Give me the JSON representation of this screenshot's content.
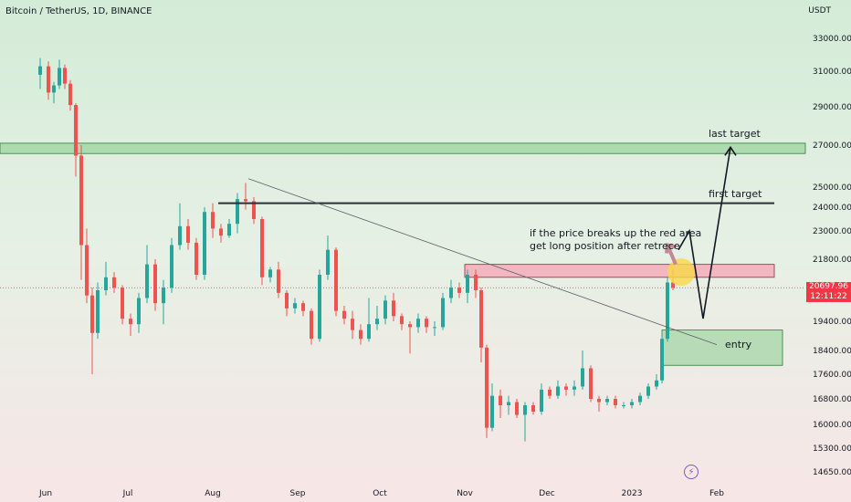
{
  "header": {
    "symbol_line": "Bitcoin / TetherUS, 1D, BINANCE",
    "currency": "USDT"
  },
  "current_price": {
    "value": "20697.96",
    "countdown": "12:11:22"
  },
  "colors": {
    "up": "#26a69a",
    "down": "#ef5350",
    "red_zone": "#f4a9b8",
    "green_zone": "#a5d6a7",
    "price_tag": "#f23645",
    "marker": "#f9d849"
  },
  "annotations": {
    "last_target": "last target",
    "first_target": "first target",
    "note_line1": "if the price breaks up the red area",
    "note_line2": "get long position after retrece",
    "entry": "entry"
  },
  "chart_data": {
    "type": "candlestick",
    "title": "Bitcoin / TetherUS, 1D, BINANCE",
    "y_ticks": [
      "33000.00",
      "31000.00",
      "29000.00",
      "27000.00",
      "25000.00",
      "24000.00",
      "23000.00",
      "21800.00",
      "20697.96",
      "19400.00",
      "18400.00",
      "17600.00",
      "16800.00",
      "16000.00",
      "15300.00",
      "14650.00"
    ],
    "x_ticks": [
      "Jun",
      "Jul",
      "Aug",
      "Sep",
      "Oct",
      "Nov",
      "Dec",
      "2023",
      "Feb"
    ],
    "ylim": [
      14400,
      34400
    ],
    "series": [
      {
        "x": "May-30",
        "o": 30800,
        "h": 31800,
        "l": 30000,
        "c": 31300
      },
      {
        "x": "Jun-02",
        "o": 31300,
        "h": 31600,
        "l": 29400,
        "c": 29800
      },
      {
        "x": "Jun-04",
        "o": 29800,
        "h": 30400,
        "l": 29200,
        "c": 30200
      },
      {
        "x": "Jun-06",
        "o": 30200,
        "h": 31700,
        "l": 30000,
        "c": 31200
      },
      {
        "x": "Jun-08",
        "o": 31200,
        "h": 31400,
        "l": 30000,
        "c": 30300
      },
      {
        "x": "Jun-10",
        "o": 30300,
        "h": 30500,
        "l": 28800,
        "c": 29100
      },
      {
        "x": "Jun-12",
        "o": 29100,
        "h": 29200,
        "l": 25500,
        "c": 26500
      },
      {
        "x": "Jun-14",
        "o": 26500,
        "h": 27000,
        "l": 21000,
        "c": 22400
      },
      {
        "x": "Jun-16",
        "o": 22400,
        "h": 23100,
        "l": 20100,
        "c": 20400
      },
      {
        "x": "Jun-18",
        "o": 20400,
        "h": 20700,
        "l": 17600,
        "c": 19000
      },
      {
        "x": "Jun-20",
        "o": 19000,
        "h": 20900,
        "l": 18800,
        "c": 20600
      },
      {
        "x": "Jun-23",
        "o": 20600,
        "h": 21700,
        "l": 20400,
        "c": 21100
      },
      {
        "x": "Jun-26",
        "o": 21100,
        "h": 21300,
        "l": 20500,
        "c": 20700
      },
      {
        "x": "Jun-29",
        "o": 20700,
        "h": 20800,
        "l": 19300,
        "c": 19500
      },
      {
        "x": "Jul-02",
        "o": 19500,
        "h": 19700,
        "l": 18900,
        "c": 19300
      },
      {
        "x": "Jul-05",
        "o": 19300,
        "h": 20500,
        "l": 19000,
        "c": 20300
      },
      {
        "x": "Jul-08",
        "o": 20300,
        "h": 22400,
        "l": 20100,
        "c": 21600
      },
      {
        "x": "Jul-11",
        "o": 21600,
        "h": 21800,
        "l": 19800,
        "c": 20100
      },
      {
        "x": "Jul-14",
        "o": 20100,
        "h": 21000,
        "l": 19300,
        "c": 20700
      },
      {
        "x": "Jul-17",
        "o": 20700,
        "h": 22700,
        "l": 20500,
        "c": 22400
      },
      {
        "x": "Jul-20",
        "o": 22400,
        "h": 24200,
        "l": 22200,
        "c": 23200
      },
      {
        "x": "Jul-23",
        "o": 23200,
        "h": 23500,
        "l": 22200,
        "c": 22500
      },
      {
        "x": "Jul-26",
        "o": 22500,
        "h": 22700,
        "l": 21000,
        "c": 21200
      },
      {
        "x": "Jul-29",
        "o": 21200,
        "h": 24000,
        "l": 21000,
        "c": 23800
      },
      {
        "x": "Aug-01",
        "o": 23800,
        "h": 24200,
        "l": 22700,
        "c": 23100
      },
      {
        "x": "Aug-04",
        "o": 23100,
        "h": 23300,
        "l": 22500,
        "c": 22800
      },
      {
        "x": "Aug-07",
        "o": 22800,
        "h": 23500,
        "l": 22700,
        "c": 23300
      },
      {
        "x": "Aug-10",
        "o": 23300,
        "h": 24700,
        "l": 22900,
        "c": 24400
      },
      {
        "x": "Aug-13",
        "o": 24400,
        "h": 25200,
        "l": 23900,
        "c": 24300
      },
      {
        "x": "Aug-16",
        "o": 24300,
        "h": 24500,
        "l": 23300,
        "c": 23500
      },
      {
        "x": "Aug-19",
        "o": 23500,
        "h": 23600,
        "l": 20800,
        "c": 21100
      },
      {
        "x": "Aug-22",
        "o": 21100,
        "h": 21500,
        "l": 20900,
        "c": 21400
      },
      {
        "x": "Aug-25",
        "o": 21400,
        "h": 21700,
        "l": 20300,
        "c": 20500
      },
      {
        "x": "Aug-28",
        "o": 20500,
        "h": 20600,
        "l": 19600,
        "c": 19900
      },
      {
        "x": "Aug-31",
        "o": 19900,
        "h": 20300,
        "l": 19700,
        "c": 20100
      },
      {
        "x": "Sep-03",
        "o": 20100,
        "h": 20200,
        "l": 19600,
        "c": 19800
      },
      {
        "x": "Sep-06",
        "o": 19800,
        "h": 19900,
        "l": 18600,
        "c": 18800
      },
      {
        "x": "Sep-09",
        "o": 18800,
        "h": 21400,
        "l": 18700,
        "c": 21200
      },
      {
        "x": "Sep-12",
        "o": 21200,
        "h": 22800,
        "l": 21000,
        "c": 22200
      },
      {
        "x": "Sep-15",
        "o": 22200,
        "h": 22300,
        "l": 19600,
        "c": 19800
      },
      {
        "x": "Sep-18",
        "o": 19800,
        "h": 20000,
        "l": 19300,
        "c": 19500
      },
      {
        "x": "Sep-21",
        "o": 19500,
        "h": 19800,
        "l": 18800,
        "c": 19100
      },
      {
        "x": "Sep-24",
        "o": 19100,
        "h": 19300,
        "l": 18600,
        "c": 18800
      },
      {
        "x": "Sep-27",
        "o": 18800,
        "h": 20300,
        "l": 18700,
        "c": 19300
      },
      {
        "x": "Sep-30",
        "o": 19300,
        "h": 20000,
        "l": 19100,
        "c": 19500
      },
      {
        "x": "Oct-03",
        "o": 19500,
        "h": 20400,
        "l": 19300,
        "c": 20200
      },
      {
        "x": "Oct-06",
        "o": 20200,
        "h": 20500,
        "l": 19400,
        "c": 19600
      },
      {
        "x": "Oct-09",
        "o": 19600,
        "h": 19700,
        "l": 19100,
        "c": 19300
      },
      {
        "x": "Oct-12",
        "o": 19300,
        "h": 19400,
        "l": 18300,
        "c": 19200
      },
      {
        "x": "Oct-15",
        "o": 19200,
        "h": 19700,
        "l": 19000,
        "c": 19500
      },
      {
        "x": "Oct-18",
        "o": 19500,
        "h": 19600,
        "l": 19000,
        "c": 19200
      },
      {
        "x": "Oct-21",
        "o": 19200,
        "h": 19400,
        "l": 18900,
        "c": 19200
      },
      {
        "x": "Oct-24",
        "o": 19200,
        "h": 20500,
        "l": 19100,
        "c": 20300
      },
      {
        "x": "Oct-27",
        "o": 20300,
        "h": 21000,
        "l": 20100,
        "c": 20700
      },
      {
        "x": "Oct-30",
        "o": 20700,
        "h": 20900,
        "l": 20300,
        "c": 20500
      },
      {
        "x": "Nov-02",
        "o": 20500,
        "h": 21400,
        "l": 20100,
        "c": 21200
      },
      {
        "x": "Nov-05",
        "o": 21200,
        "h": 21400,
        "l": 20300,
        "c": 20600
      },
      {
        "x": "Nov-07",
        "o": 20600,
        "h": 20700,
        "l": 18000,
        "c": 18500
      },
      {
        "x": "Nov-09",
        "o": 18500,
        "h": 18600,
        "l": 15600,
        "c": 15900
      },
      {
        "x": "Nov-11",
        "o": 15900,
        "h": 17300,
        "l": 15800,
        "c": 16900
      },
      {
        "x": "Nov-14",
        "o": 16900,
        "h": 17100,
        "l": 16200,
        "c": 16600
      },
      {
        "x": "Nov-17",
        "o": 16600,
        "h": 16900,
        "l": 16300,
        "c": 16700
      },
      {
        "x": "Nov-20",
        "o": 16700,
        "h": 16800,
        "l": 16200,
        "c": 16300
      },
      {
        "x": "Nov-23",
        "o": 16300,
        "h": 16700,
        "l": 15500,
        "c": 16600
      },
      {
        "x": "Nov-26",
        "o": 16600,
        "h": 16700,
        "l": 16300,
        "c": 16400
      },
      {
        "x": "Nov-29",
        "o": 16400,
        "h": 17300,
        "l": 16300,
        "c": 17100
      },
      {
        "x": "Dec-02",
        "o": 17100,
        "h": 17200,
        "l": 16800,
        "c": 16900
      },
      {
        "x": "Dec-05",
        "o": 16900,
        "h": 17400,
        "l": 16800,
        "c": 17200
      },
      {
        "x": "Dec-08",
        "o": 17200,
        "h": 17300,
        "l": 16900,
        "c": 17100
      },
      {
        "x": "Dec-11",
        "o": 17100,
        "h": 17400,
        "l": 16900,
        "c": 17200
      },
      {
        "x": "Dec-14",
        "o": 17200,
        "h": 18400,
        "l": 17100,
        "c": 17800
      },
      {
        "x": "Dec-17",
        "o": 17800,
        "h": 17900,
        "l": 16700,
        "c": 16800
      },
      {
        "x": "Dec-20",
        "o": 16800,
        "h": 16900,
        "l": 16400,
        "c": 16700
      },
      {
        "x": "Dec-23",
        "o": 16700,
        "h": 16900,
        "l": 16600,
        "c": 16800
      },
      {
        "x": "Dec-26",
        "o": 16800,
        "h": 16900,
        "l": 16500,
        "c": 16600
      },
      {
        "x": "Dec-29",
        "o": 16600,
        "h": 16700,
        "l": 16500,
        "c": 16600
      },
      {
        "x": "Jan-01",
        "o": 16600,
        "h": 16800,
        "l": 16500,
        "c": 16700
      },
      {
        "x": "Jan-04",
        "o": 16700,
        "h": 17000,
        "l": 16600,
        "c": 16900
      },
      {
        "x": "Jan-07",
        "o": 16900,
        "h": 17300,
        "l": 16800,
        "c": 17200
      },
      {
        "x": "Jan-10",
        "o": 17200,
        "h": 17600,
        "l": 17100,
        "c": 17400
      },
      {
        "x": "Jan-12",
        "o": 17400,
        "h": 18900,
        "l": 17300,
        "c": 18800
      },
      {
        "x": "Jan-14",
        "o": 18800,
        "h": 21100,
        "l": 18700,
        "c": 20900
      },
      {
        "x": "Jan-16",
        "o": 20900,
        "h": 21400,
        "l": 20600,
        "c": 20698
      }
    ],
    "drawings": {
      "red_zone": {
        "from": "Nov-01",
        "to": "Feb-22",
        "low": 21100,
        "high": 21600
      },
      "entry_zone": {
        "from": "Jan-12",
        "to": "Feb-25",
        "low": 17900,
        "high": 19100
      },
      "first_target_level": 24200,
      "last_target_band": {
        "low": 26600,
        "high": 27100
      },
      "trendline": {
        "x1": "Aug-14",
        "y1": 25400,
        "x2": "Feb-01",
        "y2": 18600
      },
      "projection_path": [
        {
          "x": "Jan-18",
          "y": 22200
        },
        {
          "x": "Jan-22",
          "y": 23000
        },
        {
          "x": "Jan-27",
          "y": 19500
        },
        {
          "x": "Feb-06",
          "y": 26900
        }
      ]
    }
  }
}
